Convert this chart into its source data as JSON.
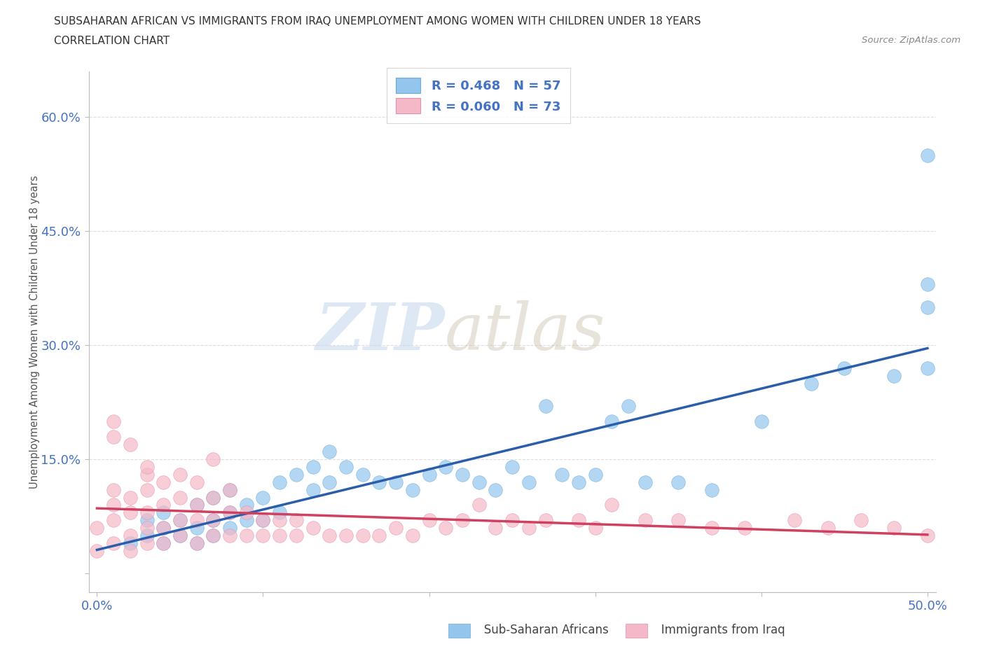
{
  "title_line1": "SUBSAHARAN AFRICAN VS IMMIGRANTS FROM IRAQ UNEMPLOYMENT AMONG WOMEN WITH CHILDREN UNDER 18 YEARS",
  "title_line2": "CORRELATION CHART",
  "source_text": "Source: ZipAtlas.com",
  "ylabel": "Unemployment Among Women with Children Under 18 years",
  "xlim": [
    -0.005,
    0.505
  ],
  "ylim": [
    -0.025,
    0.66
  ],
  "xticks": [
    0.0,
    0.1,
    0.2,
    0.3,
    0.4,
    0.5
  ],
  "xticklabels": [
    "0.0%",
    "",
    "",
    "",
    "",
    "50.0%"
  ],
  "yticks": [
    0.0,
    0.15,
    0.3,
    0.45,
    0.6
  ],
  "yticklabels": [
    "",
    "15.0%",
    "30.0%",
    "45.0%",
    "60.0%"
  ],
  "blue_color": "#93C5ED",
  "blue_edge_color": "#6AAEDD",
  "pink_color": "#F5B8C8",
  "pink_edge_color": "#E890A8",
  "blue_line_color": "#2B5EAA",
  "pink_line_color": "#D04060",
  "pink_dashed_color": "#E090A8",
  "legend_r_blue": "R = 0.468",
  "legend_n_blue": "N = 57",
  "legend_r_pink": "R = 0.060",
  "legend_n_pink": "N = 73",
  "watermark_zip": "ZIP",
  "watermark_atlas": "atlas",
  "grid_color": "#DDDDDD",
  "blue_scatter_x": [
    0.02,
    0.03,
    0.03,
    0.04,
    0.04,
    0.04,
    0.05,
    0.05,
    0.06,
    0.06,
    0.06,
    0.07,
    0.07,
    0.07,
    0.08,
    0.08,
    0.08,
    0.09,
    0.09,
    0.1,
    0.1,
    0.11,
    0.11,
    0.12,
    0.13,
    0.13,
    0.14,
    0.14,
    0.15,
    0.16,
    0.17,
    0.18,
    0.19,
    0.2,
    0.21,
    0.22,
    0.23,
    0.24,
    0.25,
    0.26,
    0.27,
    0.28,
    0.29,
    0.3,
    0.31,
    0.32,
    0.33,
    0.35,
    0.37,
    0.4,
    0.43,
    0.45,
    0.48,
    0.5,
    0.5,
    0.5,
    0.5
  ],
  "blue_scatter_y": [
    0.04,
    0.05,
    0.07,
    0.04,
    0.06,
    0.08,
    0.05,
    0.07,
    0.04,
    0.06,
    0.09,
    0.05,
    0.07,
    0.1,
    0.06,
    0.08,
    0.11,
    0.07,
    0.09,
    0.07,
    0.1,
    0.08,
    0.12,
    0.13,
    0.11,
    0.14,
    0.12,
    0.16,
    0.14,
    0.13,
    0.12,
    0.12,
    0.11,
    0.13,
    0.14,
    0.13,
    0.12,
    0.11,
    0.14,
    0.12,
    0.22,
    0.13,
    0.12,
    0.13,
    0.2,
    0.22,
    0.12,
    0.12,
    0.11,
    0.2,
    0.25,
    0.27,
    0.26,
    0.27,
    0.35,
    0.38,
    0.55
  ],
  "pink_scatter_x": [
    0.0,
    0.0,
    0.01,
    0.01,
    0.01,
    0.01,
    0.02,
    0.02,
    0.02,
    0.02,
    0.03,
    0.03,
    0.03,
    0.03,
    0.03,
    0.04,
    0.04,
    0.04,
    0.04,
    0.05,
    0.05,
    0.05,
    0.05,
    0.06,
    0.06,
    0.06,
    0.06,
    0.07,
    0.07,
    0.07,
    0.07,
    0.08,
    0.08,
    0.08,
    0.09,
    0.09,
    0.1,
    0.1,
    0.11,
    0.11,
    0.12,
    0.12,
    0.13,
    0.14,
    0.15,
    0.16,
    0.17,
    0.18,
    0.19,
    0.2,
    0.21,
    0.22,
    0.23,
    0.24,
    0.25,
    0.26,
    0.27,
    0.29,
    0.3,
    0.31,
    0.33,
    0.35,
    0.37,
    0.39,
    0.42,
    0.44,
    0.46,
    0.48,
    0.5,
    0.01,
    0.01,
    0.02,
    0.03
  ],
  "pink_scatter_y": [
    0.03,
    0.06,
    0.04,
    0.07,
    0.09,
    0.11,
    0.03,
    0.05,
    0.08,
    0.1,
    0.04,
    0.06,
    0.08,
    0.11,
    0.13,
    0.04,
    0.06,
    0.09,
    0.12,
    0.05,
    0.07,
    0.1,
    0.13,
    0.04,
    0.07,
    0.09,
    0.12,
    0.05,
    0.07,
    0.1,
    0.15,
    0.05,
    0.08,
    0.11,
    0.05,
    0.08,
    0.05,
    0.07,
    0.05,
    0.07,
    0.05,
    0.07,
    0.06,
    0.05,
    0.05,
    0.05,
    0.05,
    0.06,
    0.05,
    0.07,
    0.06,
    0.07,
    0.09,
    0.06,
    0.07,
    0.06,
    0.07,
    0.07,
    0.06,
    0.09,
    0.07,
    0.07,
    0.06,
    0.06,
    0.07,
    0.06,
    0.07,
    0.06,
    0.05,
    0.18,
    0.2,
    0.17,
    0.14
  ]
}
